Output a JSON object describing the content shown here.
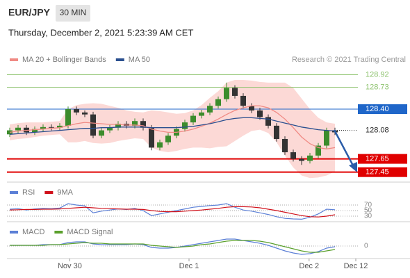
{
  "header": {
    "symbol": "EUR/JPY",
    "timeframe": "30 MIN",
    "datetime": "Thursday, December 2, 2021 5:23:39 AM CET",
    "credit": "Research © 2021 Trading Central"
  },
  "chart_data": {
    "type": "candlestick",
    "up_color": "#3c8c2c",
    "down_color": "#333333",
    "xlim": [
      0,
      39
    ],
    "xticks": [
      {
        "value": 7.2,
        "label": "Nov 30"
      },
      {
        "value": 21.5,
        "label": "Dec 1"
      },
      {
        "value": 35.9,
        "label": "Dec 2"
      },
      {
        "value": 41.5,
        "label": "Dec 12"
      }
    ],
    "ylim": [
      127.3,
      129.05
    ],
    "candles": [
      [
        128.02,
        128.12,
        127.98,
        128.08
      ],
      [
        128.08,
        128.16,
        128.04,
        128.12
      ],
      [
        128.12,
        128.16,
        128.01,
        128.05
      ],
      [
        128.05,
        128.14,
        128.01,
        128.1
      ],
      [
        128.1,
        128.17,
        128.06,
        128.13
      ],
      [
        128.13,
        128.17,
        128.08,
        128.12
      ],
      [
        128.12,
        128.19,
        128.08,
        128.15
      ],
      [
        128.15,
        128.44,
        128.11,
        128.4
      ],
      [
        128.4,
        128.44,
        128.31,
        128.35
      ],
      [
        128.35,
        128.38,
        128.28,
        128.32
      ],
      [
        128.32,
        128.36,
        127.96,
        128.0
      ],
      [
        128.0,
        128.12,
        127.96,
        128.08
      ],
      [
        128.08,
        128.16,
        128.04,
        128.12
      ],
      [
        128.12,
        128.22,
        128.08,
        128.18
      ],
      [
        128.18,
        128.22,
        128.11,
        128.15
      ],
      [
        128.15,
        128.26,
        128.11,
        128.22
      ],
      [
        128.22,
        128.26,
        128.08,
        128.12
      ],
      [
        128.12,
        128.16,
        127.78,
        127.82
      ],
      [
        127.82,
        127.94,
        127.78,
        127.9
      ],
      [
        127.9,
        128.04,
        127.86,
        128.0
      ],
      [
        128.0,
        128.14,
        127.96,
        128.1
      ],
      [
        128.1,
        128.24,
        128.06,
        128.2
      ],
      [
        128.2,
        128.34,
        128.16,
        128.3
      ],
      [
        128.3,
        128.39,
        128.26,
        128.35
      ],
      [
        128.35,
        128.49,
        128.31,
        128.45
      ],
      [
        128.45,
        128.59,
        128.41,
        128.55
      ],
      [
        128.55,
        128.8,
        128.51,
        128.72
      ],
      [
        128.72,
        128.76,
        128.56,
        128.6
      ],
      [
        128.6,
        128.64,
        128.41,
        128.45
      ],
      [
        128.45,
        128.49,
        128.34,
        128.38
      ],
      [
        128.38,
        128.42,
        128.24,
        128.28
      ],
      [
        128.28,
        128.32,
        128.11,
        128.15
      ],
      [
        128.15,
        128.19,
        127.91,
        127.95
      ],
      [
        127.95,
        127.99,
        127.71,
        127.75
      ],
      [
        127.75,
        127.79,
        127.61,
        127.65
      ],
      [
        127.65,
        127.69,
        127.56,
        127.62
      ],
      [
        127.62,
        127.74,
        127.58,
        127.7
      ],
      [
        127.7,
        127.89,
        127.66,
        127.85
      ],
      [
        127.85,
        128.12,
        127.81,
        128.08
      ],
      [
        128.08,
        128.12,
        128.01,
        128.05
      ]
    ],
    "series": [
      {
        "name": "MA 20 + Bollinger Bands",
        "color": "#f08a84",
        "band_color": "#fcd9d6",
        "values": [
          128.05,
          128.07,
          128.08,
          128.09,
          128.1,
          128.11,
          128.12,
          128.15,
          128.18,
          128.2,
          128.19,
          128.18,
          128.17,
          128.17,
          128.16,
          128.16,
          128.15,
          128.1,
          128.07,
          128.05,
          128.05,
          128.07,
          128.1,
          128.14,
          128.19,
          128.25,
          128.32,
          128.38,
          128.42,
          128.45,
          128.45,
          128.42,
          128.35,
          128.25,
          128.12,
          127.98,
          127.88,
          127.82,
          127.8,
          127.82
        ],
        "upper": [
          128.17,
          128.19,
          128.2,
          128.2,
          128.2,
          128.21,
          128.22,
          128.4,
          128.46,
          128.48,
          128.49,
          128.48,
          128.45,
          128.42,
          128.38,
          128.36,
          128.35,
          128.38,
          128.37,
          128.35,
          128.33,
          128.34,
          128.38,
          128.46,
          128.57,
          128.67,
          128.8,
          128.84,
          128.84,
          128.83,
          128.81,
          128.8,
          128.8,
          128.8,
          128.72,
          128.56,
          128.4,
          128.27,
          128.2,
          128.18
        ],
        "lower": [
          127.93,
          127.95,
          127.96,
          127.98,
          128.0,
          128.01,
          128.02,
          127.9,
          127.9,
          127.92,
          127.89,
          127.88,
          127.89,
          127.92,
          127.94,
          127.96,
          127.95,
          127.82,
          127.77,
          127.75,
          127.77,
          127.8,
          127.82,
          127.82,
          127.81,
          127.83,
          127.84,
          127.92,
          128.0,
          128.07,
          128.09,
          128.04,
          127.9,
          127.7,
          127.52,
          127.4,
          127.36,
          127.37,
          127.4,
          127.46
        ]
      },
      {
        "name": "MA 50",
        "color": "#2a4f8f",
        "values": [
          128.02,
          128.03,
          128.04,
          128.05,
          128.06,
          128.07,
          128.08,
          128.09,
          128.1,
          128.11,
          128.11,
          128.12,
          128.12,
          128.13,
          128.13,
          128.13,
          128.13,
          128.12,
          128.12,
          128.12,
          128.12,
          128.13,
          128.14,
          128.16,
          128.18,
          128.21,
          128.24,
          128.26,
          128.27,
          128.27,
          128.26,
          128.25,
          128.22,
          128.19,
          128.16,
          128.13,
          128.11,
          128.09,
          128.08,
          128.07
        ]
      }
    ],
    "price_levels": [
      {
        "value": 128.92,
        "color": "#8cc26c",
        "style": "text"
      },
      {
        "value": 128.73,
        "color": "#8cc26c",
        "style": "text"
      },
      {
        "value": 128.4,
        "label": "128.40",
        "color": "#1f66c9",
        "style": "box"
      },
      {
        "value": 128.08,
        "color": "#222222",
        "style": "dotted"
      },
      {
        "value": 127.65,
        "color": "#e00000",
        "style": "box"
      },
      {
        "value": 127.45,
        "color": "#e00000",
        "style": "box"
      }
    ],
    "rsi_panel": {
      "ylim": [
        12.5,
        82.5
      ],
      "yticks": [
        70,
        50,
        30
      ],
      "series": [
        {
          "name": "RSI",
          "color": "#5b7fd6",
          "values": [
            55,
            57,
            52,
            56,
            58,
            57,
            59,
            75,
            70,
            67,
            42,
            48,
            52,
            56,
            54,
            58,
            50,
            32,
            38,
            44,
            50,
            56,
            62,
            65,
            68,
            70,
            75,
            62,
            52,
            48,
            42,
            36,
            28,
            22,
            20,
            19,
            26,
            38,
            55,
            53
          ]
        },
        {
          "name": "9MA",
          "color": "#d0101a",
          "values": [
            52,
            53,
            54,
            54,
            55,
            55,
            56,
            58,
            60,
            62,
            60,
            58,
            57,
            56,
            55,
            55,
            54,
            50,
            47,
            46,
            46,
            48,
            50,
            52,
            55,
            58,
            62,
            64,
            64,
            63,
            60,
            55,
            50,
            44,
            38,
            32,
            28,
            27,
            30,
            35
          ]
        }
      ]
    },
    "macd_panel": {
      "ylim": [
        -0.16,
        0.14
      ],
      "yticks": [
        0
      ],
      "series": [
        {
          "name": "MACD",
          "color": "#5b7fd6",
          "values": [
            0.01,
            0.01,
            0.01,
            0.01,
            0.02,
            0.02,
            0.02,
            0.05,
            0.06,
            0.06,
            0.03,
            0.02,
            0.02,
            0.02,
            0.02,
            0.03,
            0.02,
            -0.02,
            -0.03,
            -0.03,
            -0.02,
            0,
            0.02,
            0.04,
            0.06,
            0.08,
            0.1,
            0.1,
            0.08,
            0.06,
            0.04,
            0.01,
            -0.03,
            -0.07,
            -0.1,
            -0.12,
            -0.11,
            -0.08,
            -0.03,
            -0.01
          ]
        },
        {
          "name": "MACD Signal",
          "color": "#5aa02c",
          "values": [
            0.01,
            0.01,
            0.01,
            0.01,
            0.01,
            0.02,
            0.02,
            0.03,
            0.04,
            0.05,
            0.04,
            0.04,
            0.03,
            0.03,
            0.03,
            0.03,
            0.03,
            0.01,
            0,
            -0.01,
            -0.02,
            -0.01,
            0,
            0.02,
            0.03,
            0.05,
            0.07,
            0.08,
            0.08,
            0.08,
            0.07,
            0.05,
            0.02,
            -0.01,
            -0.04,
            -0.07,
            -0.09,
            -0.09,
            -0.07,
            -0.05
          ]
        }
      ]
    }
  }
}
